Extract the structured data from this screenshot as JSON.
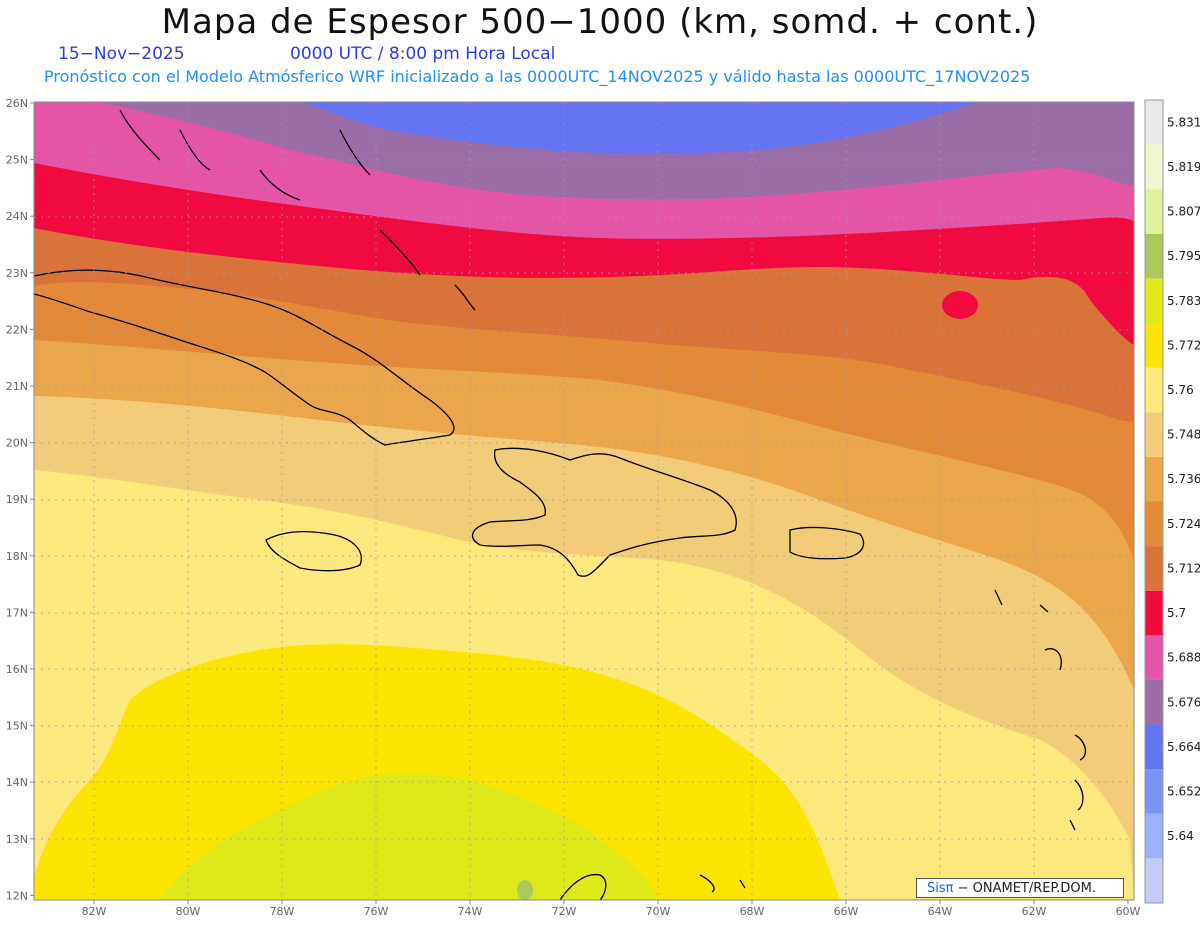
{
  "title": "Mapa de Espesor 500−1000 (km, somd. + cont.)",
  "date_label": "15−Nov−2025",
  "time_label": "0000 UTC / 8:00 pm Hora Local",
  "forecast_note": "Pronóstico con el Modelo Atmósferico WRF inicializado a las 0000UTC_14NOV2025 y válido hasta las  0000UTC_17NOV2025",
  "lat_labels": [
    "26N",
    "25N",
    "24N",
    "23N",
    "22N",
    "21N",
    "20N",
    "19N",
    "18N",
    "17N",
    "16N",
    "15N",
    "14N",
    "13N",
    "12N"
  ],
  "lon_labels": [
    "82W",
    "80W",
    "78W",
    "76W",
    "74W",
    "72W",
    "70W",
    "68W",
    "66W",
    "64W",
    "62W",
    "60W"
  ],
  "colorbar": {
    "levels": [
      "5.64",
      "5.652",
      "5.664",
      "5.676",
      "5.688",
      "5.7",
      "5.712",
      "5.724",
      "5.736",
      "5.748",
      "5.76",
      "5.772",
      "5.783",
      "5.795",
      "5.807",
      "5.819",
      "5.831"
    ],
    "colors": [
      "#c4cbf7",
      "#9db0f8",
      "#7d93f6",
      "#6575f2",
      "#9a6da6",
      "#e455a6",
      "#f00a40",
      "#d9733a",
      "#e38a3a",
      "#eba54a",
      "#f2cc78",
      "#fde87e",
      "#fbe400",
      "#dfe919",
      "#a9c95a",
      "#def19c",
      "#f0f7d2",
      "#eaeaea"
    ]
  },
  "credit": {
    "brand": "Sisπ",
    "text": " − ONAMET/REP.DOM."
  },
  "layer_colors": {
    "blue": "#6575f2",
    "purple": "#9a6da6",
    "pink": "#e455a6",
    "red": "#f00a40",
    "orange_dark": "#d9733a",
    "orange": "#e38a3a",
    "orange_light": "#eba54a",
    "tan": "#f2cc78",
    "light_yellow": "#fde87e",
    "yellow": "#fbe400",
    "lime": "#dfe919",
    "green": "#a9c95a"
  }
}
